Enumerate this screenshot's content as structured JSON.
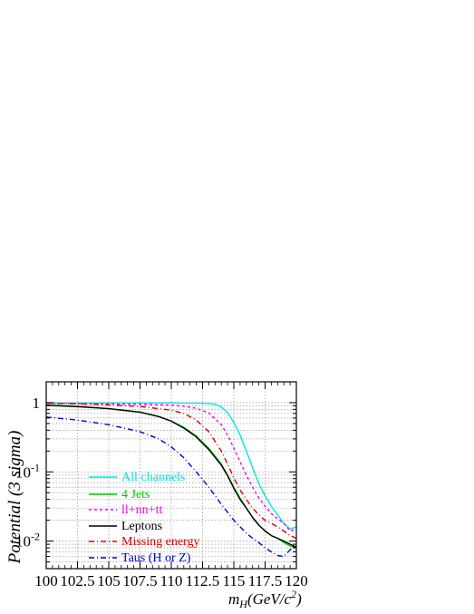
{
  "chart_data": {
    "type": "line",
    "xlabel": "m_H(GeV/c^2)",
    "ylabel": "Potential (3 sigma)",
    "xlim": [
      100,
      120
    ],
    "ylim": [
      0.004,
      2.0
    ],
    "yscale": "log",
    "grid": true,
    "legend_position": "lower-left",
    "x_ticks": [
      "100",
      "102.5",
      "105",
      "107.5",
      "110",
      "112.5",
      "115",
      "117.5",
      "120"
    ],
    "y_ticks": [
      {
        "value": 1,
        "label": "1",
        "exp": ""
      },
      {
        "value": 0.1,
        "label": "10",
        "exp": "-1"
      },
      {
        "value": 0.01,
        "label": "10",
        "exp": "-2"
      }
    ],
    "series": [
      {
        "name": "All channels",
        "color": "#00e5e5",
        "dash": "solid",
        "x": [
          100,
          105,
          110,
          112.5,
          113.5,
          114,
          114.5,
          115,
          115.5,
          116,
          116.5,
          117,
          117.5,
          118,
          118.5,
          119,
          119.5,
          120
        ],
        "y": [
          0.99,
          0.99,
          0.99,
          0.98,
          0.95,
          0.87,
          0.72,
          0.52,
          0.34,
          0.2,
          0.115,
          0.068,
          0.045,
          0.032,
          0.024,
          0.018,
          0.015,
          0.016
        ]
      },
      {
        "name": "4 Jets",
        "color": "#00cc00",
        "dash": "solid",
        "x": [
          100,
          102.5,
          105,
          107.5,
          109,
          110,
          111,
          112,
          113,
          114,
          114.5,
          115,
          115.5,
          116,
          116.5,
          117,
          117.5,
          118,
          118.5,
          119,
          119.5,
          120
        ],
        "y": [
          0.91,
          0.87,
          0.82,
          0.73,
          0.63,
          0.54,
          0.44,
          0.33,
          0.22,
          0.13,
          0.09,
          0.06,
          0.042,
          0.03,
          0.022,
          0.017,
          0.014,
          0.012,
          0.011,
          0.0095,
          0.0085,
          0.008
        ]
      },
      {
        "name": "ll+nn+tt",
        "color": "#ee00ee",
        "dash": "3,3",
        "x": [
          100,
          102.5,
          105,
          107.5,
          110,
          111,
          112,
          113,
          114,
          114.5,
          115,
          115.5,
          116,
          116.5,
          117,
          117.5,
          118,
          118.5,
          119,
          119.5,
          120
        ],
        "y": [
          0.98,
          0.97,
          0.96,
          0.95,
          0.92,
          0.89,
          0.83,
          0.71,
          0.48,
          0.34,
          0.22,
          0.14,
          0.09,
          0.06,
          0.042,
          0.032,
          0.025,
          0.021,
          0.018,
          0.014,
          0.015
        ]
      },
      {
        "name": "Leptons",
        "color": "#000000",
        "dash": "solid",
        "x": [
          100,
          102.5,
          105,
          107.5,
          109,
          110,
          111,
          112,
          113,
          114,
          114.5,
          115,
          115.5,
          116,
          116.5,
          117,
          117.5,
          118,
          118.5,
          119,
          119.5,
          120
        ],
        "y": [
          0.92,
          0.88,
          0.82,
          0.73,
          0.63,
          0.54,
          0.43,
          0.32,
          0.21,
          0.125,
          0.088,
          0.058,
          0.04,
          0.03,
          0.022,
          0.017,
          0.014,
          0.012,
          0.011,
          0.01,
          0.009,
          0.0082
        ]
      },
      {
        "name": "Missing energy",
        "color": "#dd0000",
        "dash": "6,3,1,3",
        "x": [
          100,
          102.5,
          105,
          107.5,
          110,
          111,
          112,
          113,
          114,
          114.5,
          115,
          115.5,
          116,
          116.5,
          117,
          117.5,
          118,
          118.5,
          119,
          119.5,
          120
        ],
        "y": [
          0.98,
          0.96,
          0.93,
          0.88,
          0.78,
          0.7,
          0.56,
          0.38,
          0.2,
          0.13,
          0.082,
          0.055,
          0.04,
          0.03,
          0.024,
          0.02,
          0.018,
          0.016,
          0.014,
          0.012,
          0.011
        ]
      },
      {
        "name": "Taus (H or Z)",
        "color": "#0000dd",
        "dash": "6,3,1,3",
        "x": [
          100,
          102.5,
          105,
          107.5,
          109,
          110,
          111,
          112,
          113,
          114,
          115,
          116,
          116.5,
          117,
          117.5,
          118,
          118.5,
          119,
          119.5,
          120
        ],
        "y": [
          0.62,
          0.56,
          0.48,
          0.38,
          0.3,
          0.23,
          0.16,
          0.1,
          0.06,
          0.034,
          0.02,
          0.013,
          0.011,
          0.0095,
          0.008,
          0.007,
          0.0062,
          0.006,
          0.0075,
          0.009
        ]
      }
    ]
  }
}
